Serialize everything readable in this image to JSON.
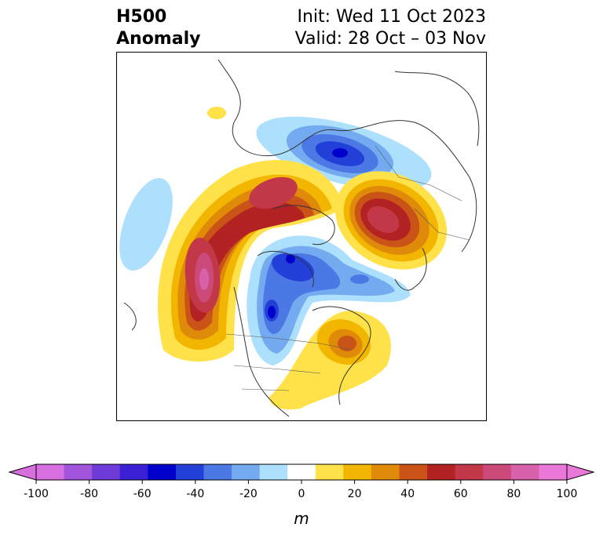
{
  "title": {
    "left_line1": "H500",
    "left_line2": "Anomaly",
    "right_line1": "Init: Wed 11 Oct 2023",
    "right_line2": "Valid: 28 Oct – 03 Nov"
  },
  "colorbar": {
    "unit_label": "m",
    "ticks": [
      "-100",
      "-80",
      "-60",
      "-40",
      "-20",
      "0",
      "20",
      "40",
      "60",
      "80",
      "100"
    ],
    "colors": [
      "#d86fe0",
      "#a354dc",
      "#6e3ad8",
      "#3a20d4",
      "#0000cc",
      "#2240d8",
      "#4c78e6",
      "#74aaf0",
      "#ade0fc",
      "#ffffff",
      "#ffe24a",
      "#f2b600",
      "#e08a0a",
      "#ca5418",
      "#b22222",
      "#c23848",
      "#cc4a7a",
      "#d862aa",
      "#ea78d8"
    ],
    "extend_low_color": "#d86fe0",
    "extend_high_color": "#ea78d8"
  },
  "map": {
    "projection": "north-polar-stereographic",
    "variable": "500 hPa geopotential height anomaly",
    "features": [
      "coastlines",
      "country-borders",
      "state-borders"
    ]
  }
}
